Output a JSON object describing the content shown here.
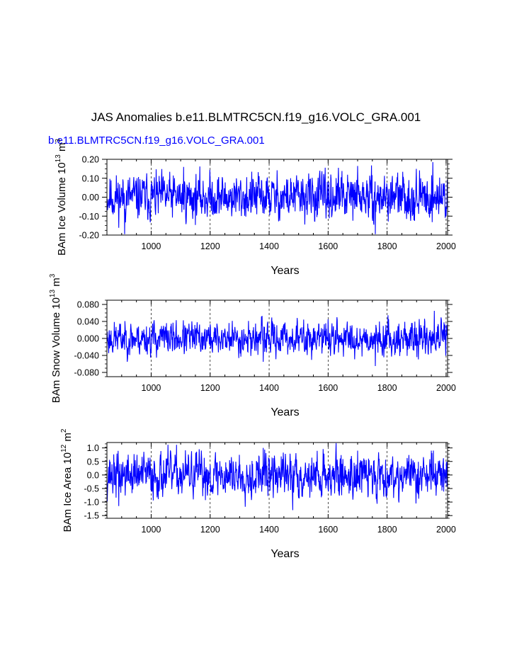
{
  "page": {
    "title": "JAS Anomalies b.e11.BLMTRC5CN.f19_g16.VOLC_GRA.001",
    "case_label": "b.e11.BLMTRC5CN.f19_g16.VOLC_GRA.001"
  },
  "colors": {
    "series": "#0000ff",
    "axis": "#000000",
    "grid": "#000000"
  },
  "chart_data": [
    {
      "type": "line",
      "name": "ice-volume",
      "ylabel": "BAm Ice Volume 10",
      "ylabel_exp": "13",
      "ylabel_unit": "m",
      "ylabel_unit_exp": "3",
      "xlabel": "Years",
      "xlim": [
        850,
        2005
      ],
      "ylim": [
        -0.2,
        0.2
      ],
      "xticks": [
        1000,
        1200,
        1400,
        1600,
        1800,
        2000
      ],
      "xtick_labels": [
        "1000",
        "1200",
        "1400",
        "1600",
        "1800",
        "2000"
      ],
      "yticks": [
        -0.2,
        -0.1,
        0.0,
        0.1,
        0.2
      ],
      "ytick_labels": [
        "-0.20",
        "-0.10",
        "0.00",
        "0.10",
        "0.20"
      ],
      "gridlines_x": [
        1000,
        1200,
        1400,
        1600,
        1800,
        2000
      ],
      "series": {
        "name": "b.e11.BLMTRC5CN.f19_g16.VOLC_GRA.001",
        "x_start": 850,
        "x_end": 2005,
        "amplitude": 0.055,
        "spikes": [
          [
            910,
            -0.195
          ],
          [
            1110,
            0.16
          ],
          [
            1635,
            0.155
          ],
          [
            1700,
            0.165
          ],
          [
            1760,
            -0.195
          ],
          [
            1955,
            0.185
          ]
        ],
        "seed": 11
      }
    },
    {
      "type": "line",
      "name": "snow-volume",
      "ylabel": "BAm Snow Volume 10",
      "ylabel_exp": "13",
      "ylabel_unit": "m",
      "ylabel_unit_exp": "3",
      "xlabel": "Years",
      "xlim": [
        850,
        2005
      ],
      "ylim": [
        -0.09,
        0.09
      ],
      "xticks": [
        1000,
        1200,
        1400,
        1600,
        1800,
        2000
      ],
      "xtick_labels": [
        "1000",
        "1200",
        "1400",
        "1600",
        "1800",
        "2000"
      ],
      "yticks": [
        -0.08,
        -0.04,
        0.0,
        0.04,
        0.08
      ],
      "ytick_labels": [
        "-0.080",
        "-0.040",
        "0.000",
        "0.040",
        "0.080"
      ],
      "gridlines_x": [
        1000,
        1200,
        1400,
        1600,
        1800,
        2000
      ],
      "series": {
        "name": "b.e11.BLMTRC5CN.f19_g16.VOLC_GRA.001",
        "x_start": 850,
        "x_end": 2005,
        "amplitude": 0.018,
        "spikes": [
          [
            1005,
            0.035
          ],
          [
            1380,
            -0.055
          ],
          [
            1600,
            0.045
          ],
          [
            1760,
            -0.065
          ],
          [
            1960,
            0.065
          ]
        ],
        "seed": 23
      }
    },
    {
      "type": "line",
      "name": "ice-area",
      "ylabel": "BAm Ice Area 10",
      "ylabel_exp": "12",
      "ylabel_unit": "m",
      "ylabel_unit_exp": "2",
      "xlabel": "Years",
      "xlim": [
        850,
        2005
      ],
      "ylim": [
        -1.6,
        1.2
      ],
      "xticks": [
        1000,
        1200,
        1400,
        1600,
        1800,
        2000
      ],
      "xtick_labels": [
        "1000",
        "1200",
        "1400",
        "1600",
        "1800",
        "2000"
      ],
      "yticks": [
        -1.5,
        -1.0,
        -0.5,
        0.0,
        0.5,
        1.0
      ],
      "ytick_labels": [
        "-1.5",
        "-1.0",
        "-0.5",
        "0.0",
        "0.5",
        "1.0"
      ],
      "gridlines_x": [
        1000,
        1200,
        1400,
        1600,
        1800,
        2000
      ],
      "series": {
        "name": "b.e11.BLMTRC5CN.f19_g16.VOLC_GRA.001",
        "x_start": 850,
        "x_end": 2005,
        "amplitude": 0.38,
        "spikes": [
          [
            1380,
            1.0
          ],
          [
            1480,
            -1.3
          ],
          [
            1700,
            0.9
          ],
          [
            1950,
            0.9
          ],
          [
            890,
            -1.15
          ]
        ],
        "seed": 37
      }
    }
  ]
}
